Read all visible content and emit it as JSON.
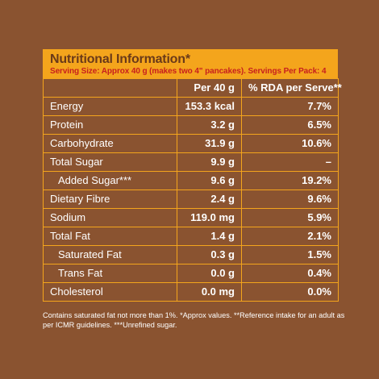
{
  "panel": {
    "title": "Nutritional Information*",
    "subtitle": "Serving Size: Approx 40 g (makes two 4\" pancakes). Servings Per Pack: 4"
  },
  "table": {
    "headers": [
      "",
      "Per 40 g",
      "% RDA per Serve**"
    ],
    "rows": [
      {
        "label": "Energy",
        "per40": "153.3 kcal",
        "rda": "7.7%"
      },
      {
        "label": "Protein",
        "per40": "3.2 g",
        "rda": "6.5%"
      },
      {
        "label": "Carbohydrate",
        "per40": "31.9 g",
        "rda": "10.6%"
      },
      {
        "label": "Total Sugar",
        "per40": "9.9 g",
        "rda": "–"
      },
      {
        "label": "Added Sugar***",
        "per40": "9.6 g",
        "rda": "19.2%"
      },
      {
        "label": "Dietary Fibre",
        "per40": "2.4 g",
        "rda": "9.6%"
      },
      {
        "label": "Sodium",
        "per40": "119.0 mg",
        "rda": "5.9%"
      },
      {
        "label": "Total Fat",
        "per40": "1.4 g",
        "rda": "2.1%"
      },
      {
        "label": "Saturated Fat",
        "per40": "0.3 g",
        "rda": "1.5%"
      },
      {
        "label": "Trans Fat",
        "per40": "0.0 g",
        "rda": "0.4%"
      },
      {
        "label": "Cholesterol",
        "per40": "0.0 mg",
        "rda": "0.0%"
      }
    ]
  },
  "footnote": "Contains saturated fat not more than 1%. *Approx values. **Reference intake for an adult as per ICMR guidelines. ***Unrefined sugar.",
  "colors": {
    "background": "#8a5330",
    "accent": "#f4a51c",
    "title": "#6a3a19",
    "subtitle": "#c7201e"
  }
}
